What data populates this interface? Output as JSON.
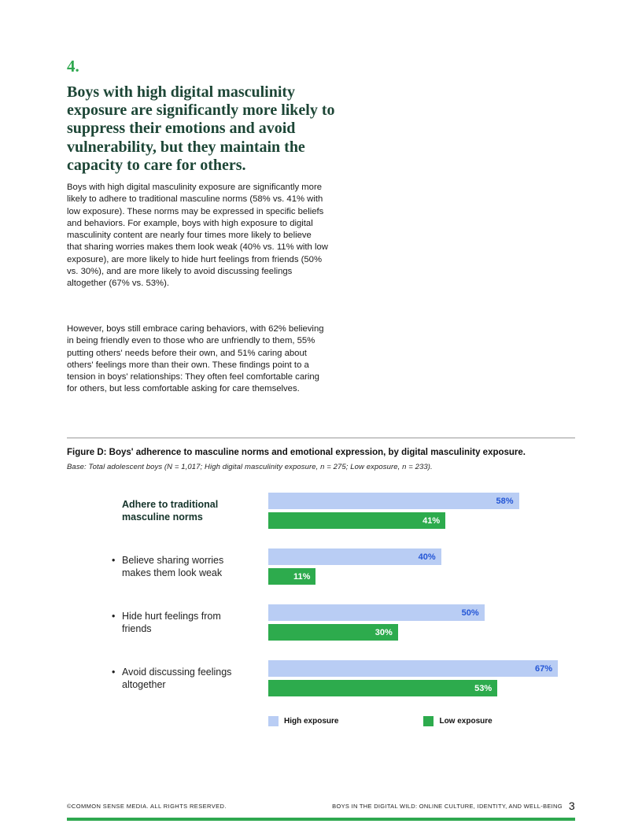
{
  "article": {
    "section_number": "4.",
    "heading": "Boys with high digital masculinity exposure are significantly more likely to suppress their emotions and avoid vulnerability, but they maintain the capacity to care for others.",
    "paragraphs": [
      "Boys with high digital masculinity exposure are significantly more likely to adhere to traditional masculine norms (58% vs. 41% with low exposure). These norms may be expressed in specific beliefs and behaviors. For example, boys with high exposure to digital masculinity content are nearly four times more likely to believe that sharing worries makes them look weak (40% vs. 11% with low exposure), are more likely to hide hurt feelings from friends (50% vs. 30%), and are more likely to avoid discussing feelings altogether (67% vs. 53%).",
      "However, boys still embrace caring behaviors, with 62% believing in being friendly even to those who are unfriendly to them, 55% putting others' needs before their own, and 51% caring about others' feelings more than their own. These findings point to a tension in boys' relationships: They often feel comfortable caring for others, but less comfortable asking for care themselves."
    ]
  },
  "figure": {
    "caption": "Figure D: Boys' adherence to masculine norms and emotional expression, by digital masculinity exposure.",
    "base_note": "Base: Total adolescent boys (N = 1,017; High digital masculinity exposure, n = 275; Low exposure, n = 233)."
  },
  "chart_data": {
    "type": "bar",
    "orientation": "horizontal",
    "title": "Figure D: Boys' adherence to masculine norms and emotional expression, by digital masculinity exposure.",
    "categories": [
      {
        "label": "Adhere to traditional masculine norms",
        "bullet": false,
        "bold": true
      },
      {
        "label": "Believe sharing worries makes them look weak",
        "bullet": true,
        "bold": false
      },
      {
        "label": "Hide hurt feelings from friends",
        "bullet": true,
        "bold": false
      },
      {
        "label": "Avoid discussing feelings altogether",
        "bullet": true,
        "bold": false
      }
    ],
    "series": [
      {
        "name": "High exposure",
        "values": [
          58,
          40,
          50,
          67
        ],
        "bar_color": "#b9cdf4",
        "value_label_color": "#2456d6"
      },
      {
        "name": "Low exposure",
        "values": [
          41,
          11,
          30,
          53
        ],
        "bar_color": "#2dab4d",
        "value_label_color": "#ffffff"
      }
    ],
    "axis_max": 71,
    "value_suffix": "%",
    "legend_position": "bottom",
    "grid": false
  },
  "footer": {
    "copyright": "©COMMON SENSE MEDIA. ALL RIGHTS RESERVED.",
    "report_title": "BOYS IN THE DIGITAL WILD: ONLINE CULTURE, IDENTITY, AND WELL-BEING",
    "page_number": "3"
  },
  "colors": {
    "accent_green": "#2fa84f",
    "heading_dark_green": "#1d4636",
    "high_exposure_blue": "#b9cdf4",
    "value_blue": "#2456d6"
  }
}
